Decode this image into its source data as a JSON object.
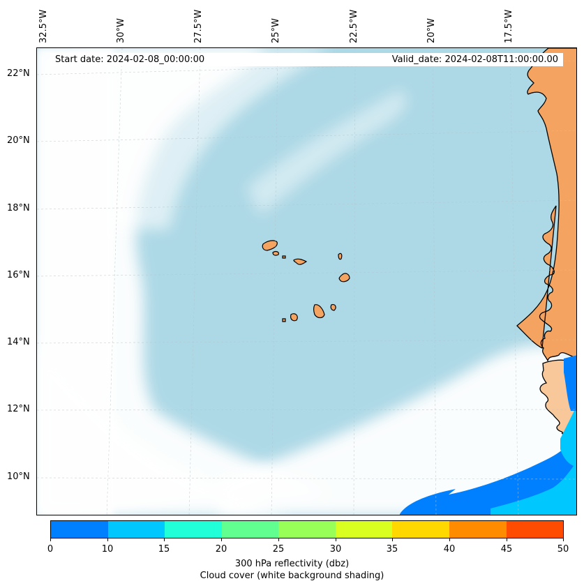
{
  "header": {
    "start_date": "Start date: 2024-02-08_00:00:00",
    "valid_date": "Valid_date: 2024-02-08T11:00:00.00"
  },
  "axes": {
    "lon_labels": [
      "32.5°W",
      "30°W",
      "27.5°W",
      "25°W",
      "22.5°W",
      "20°W",
      "17.5°W"
    ],
    "lat_labels": [
      "22°N",
      "20°N",
      "18°N",
      "16°N",
      "14°N",
      "12°N",
      "10°N"
    ]
  },
  "colorbar": {
    "ticks": [
      "0",
      "10",
      "15",
      "20",
      "25",
      "30",
      "35",
      "40",
      "45",
      "50"
    ],
    "colors": [
      "#0080ff",
      "#00c8ff",
      "#20ffd8",
      "#60ff90",
      "#98ff58",
      "#d8ff20",
      "#ffd800",
      "#ff8c00",
      "#ff4c00"
    ],
    "label_line1": "300 hPa reflectivity (dbz)",
    "label_line2": "Cloud cover (white background shading)"
  },
  "colors": {
    "ocean": "#add8e6",
    "land": "#f4a460",
    "cloud": "#ffffff",
    "reflectivity_low": "#0080ff",
    "reflectivity_mid": "#00c8ff"
  }
}
